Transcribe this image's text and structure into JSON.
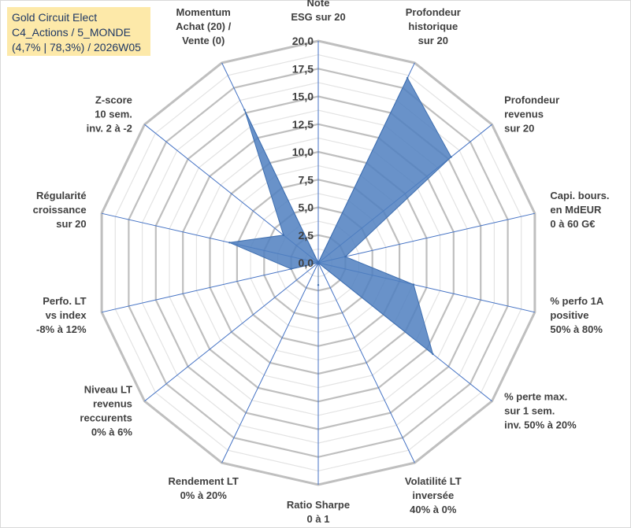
{
  "chart_data": {
    "type": "radar",
    "title_lines": [
      "Gold Circuit Elect",
      "C4_Actions / 5_MONDE",
      "(4,7% | 78,3%) / 2026W05"
    ],
    "axes": [
      {
        "label": [
          "Note",
          "ESG sur 20"
        ],
        "value": 0.0
      },
      {
        "label": [
          "Profondeur",
          "historique",
          "sur 20"
        ],
        "value": 18.5
      },
      {
        "label": [
          "Profondeur",
          "revenus",
          "sur 20"
        ],
        "value": 15.3
      },
      {
        "label": [
          "Capi. bours.",
          "en MdEUR",
          "0 à 60 G€"
        ],
        "value": 2.5
      },
      {
        "label": [
          "% perfo 1A",
          "positive",
          "50% à 80%"
        ],
        "value": 8.8
      },
      {
        "label": [
          "% perte max.",
          "sur 1 sem.",
          "inv. 50% à 20%"
        ],
        "value": 13.2
      },
      {
        "label": [
          "Volatilité LT",
          "inversée",
          "40% à 0%"
        ],
        "value": 0.0
      },
      {
        "label": [
          "Ratio Sharpe",
          "0 à 1"
        ],
        "value": 2.0
      },
      {
        "label": [
          "Rendement LT",
          "0% à 20%"
        ],
        "value": 0.0
      },
      {
        "label": [
          "Niveau LT",
          "revenus",
          "reccurents",
          "0% à 6%"
        ],
        "value": 0.0
      },
      {
        "label": [
          "Perfo. LT",
          "vs index",
          "-8% à 12%"
        ],
        "value": 2.5
      },
      {
        "label": [
          "Régularité",
          "croissance",
          "sur 20"
        ],
        "value": 8.2
      },
      {
        "label": [
          "Z-score",
          "10 sem.",
          "inv. 2 à -2"
        ],
        "value": 4.0
      },
      {
        "label": [
          "Momentum",
          "Achat (20) /",
          "Vente (0)"
        ],
        "value": 15.3
      }
    ],
    "r_ticks": [
      "0,0",
      "2,5",
      "5,0",
      "7,5",
      "10,0",
      "12,5",
      "15,0",
      "17,5",
      "20,0"
    ],
    "r_min": 0,
    "r_max": 20,
    "grid": true,
    "legend": "none",
    "colors": {
      "fill": "#4f7fbf",
      "stroke": "#3f6fb0",
      "grid": "#bfbfbf",
      "spoke": "#4472c4",
      "title_bg": "#fde9a9",
      "title_text": "#1f3864",
      "label_text": "#404040"
    }
  }
}
